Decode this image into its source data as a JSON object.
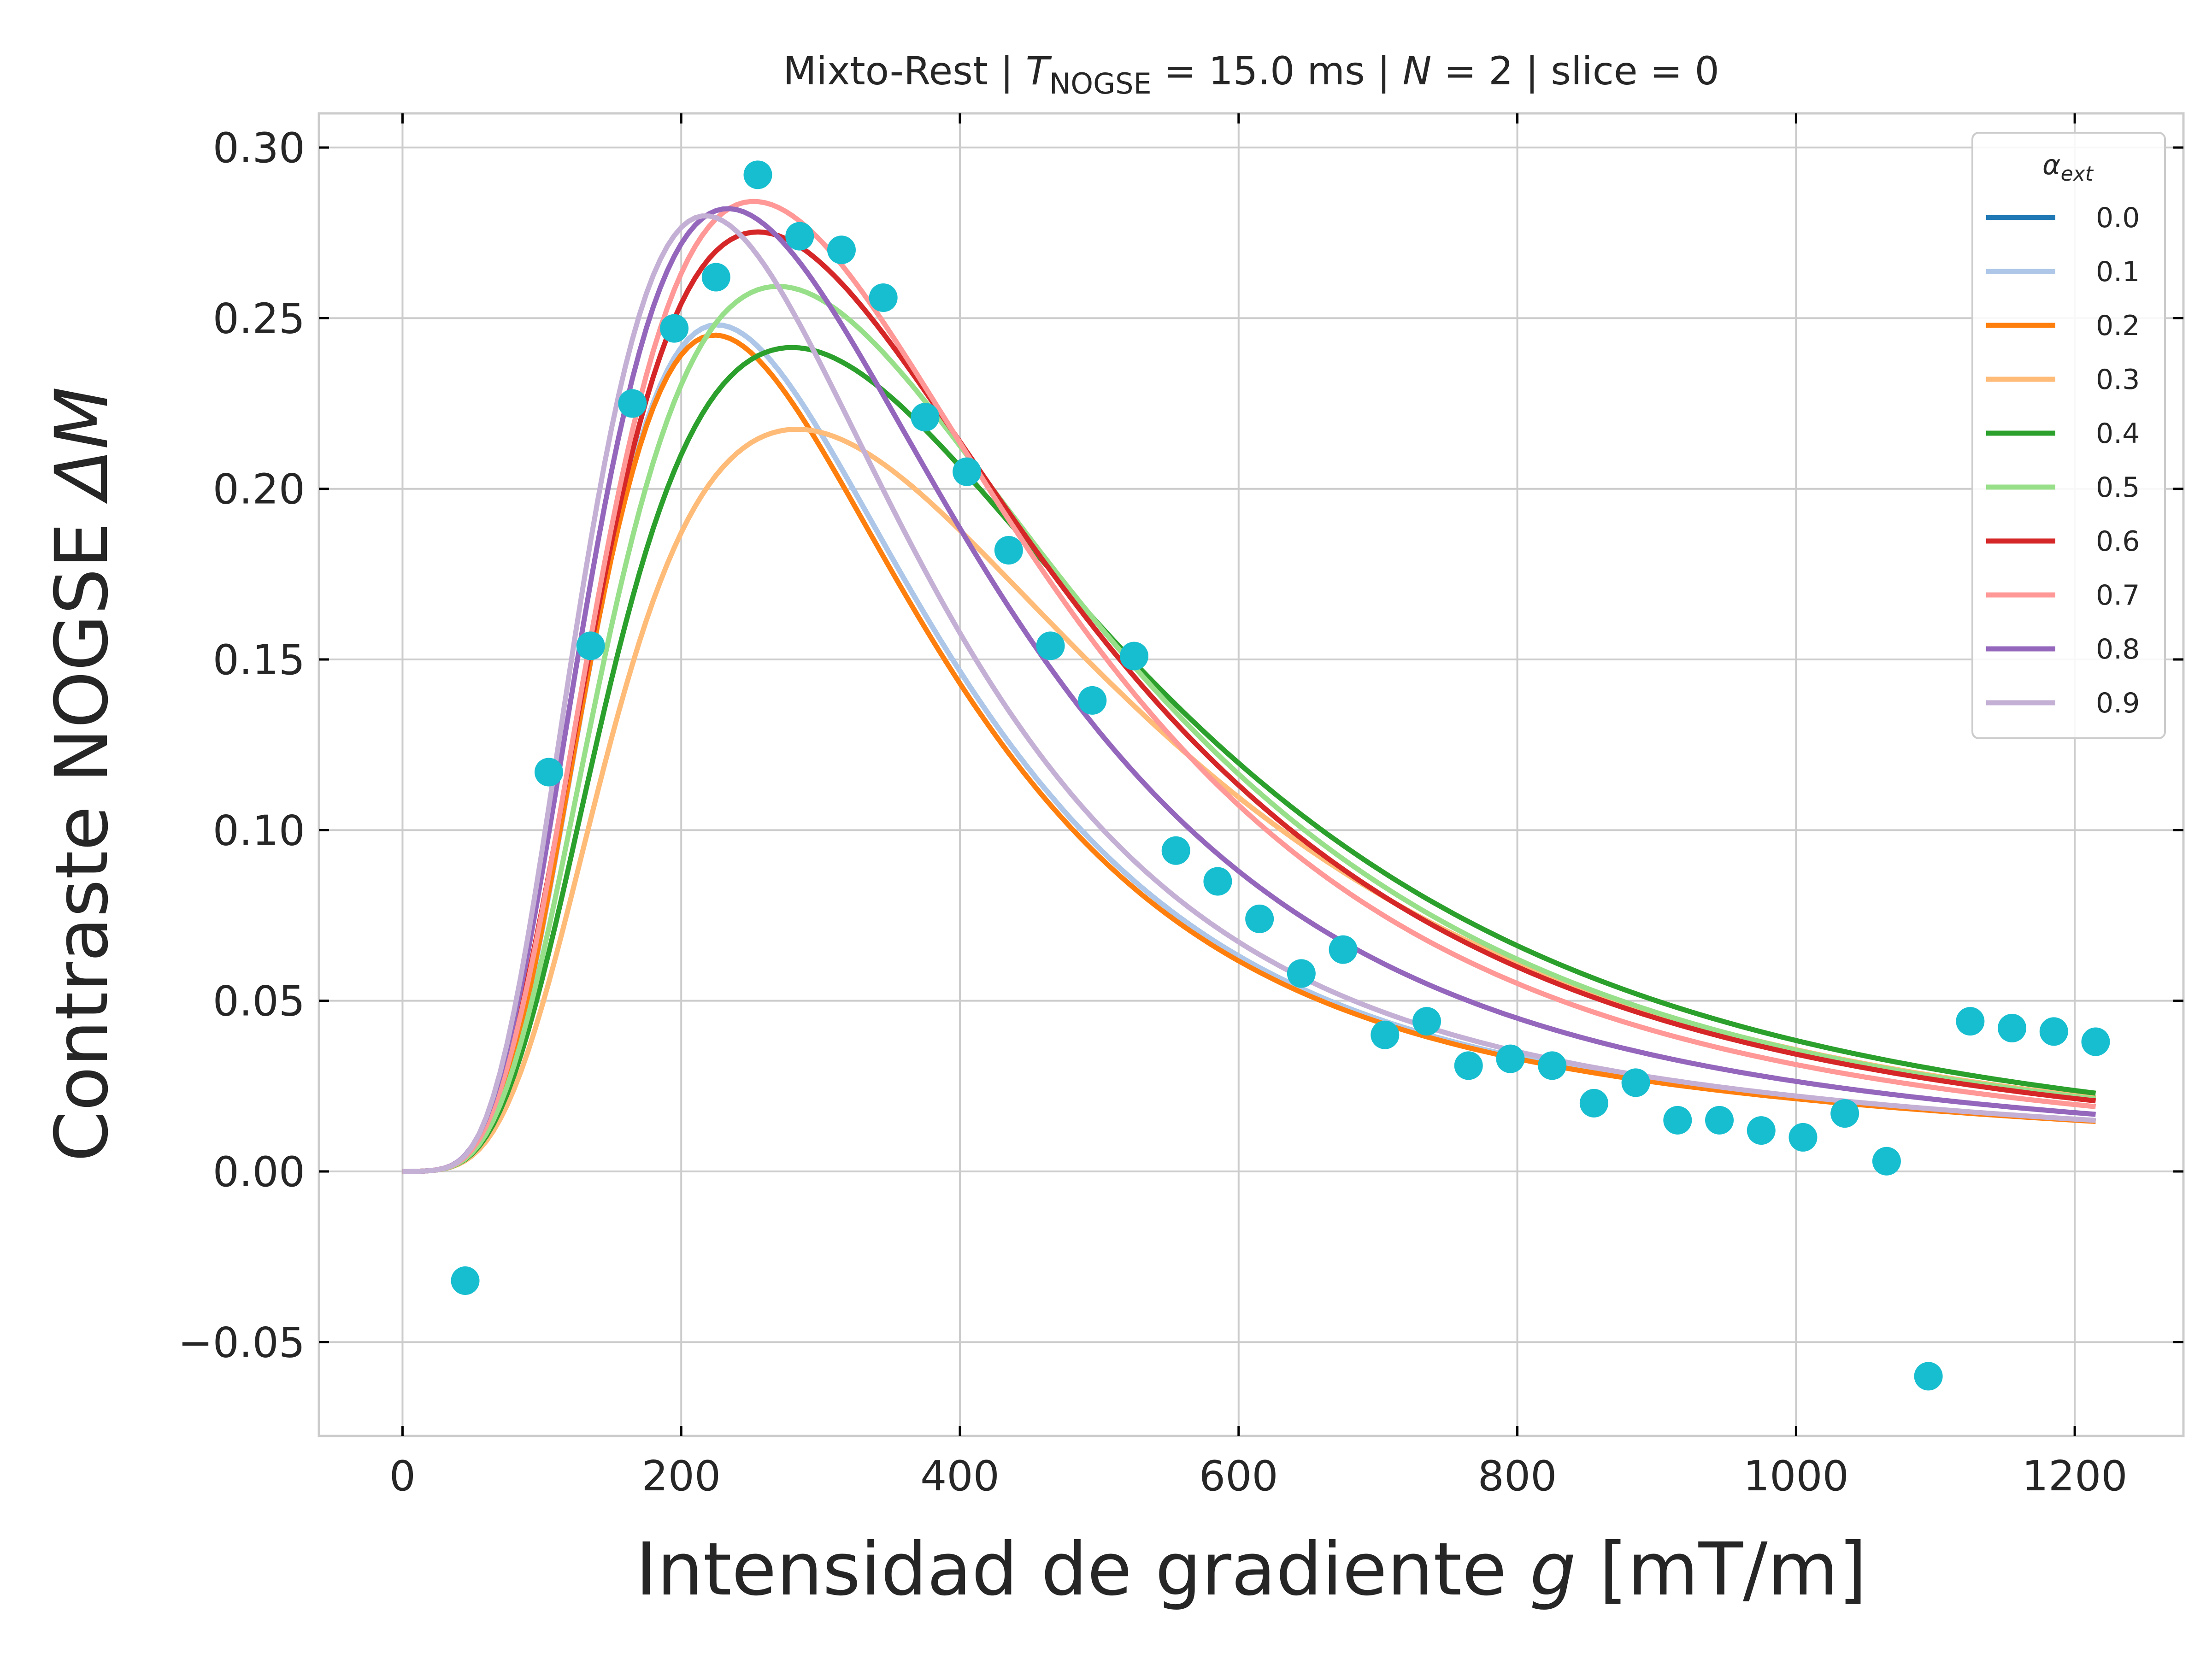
{
  "chart_data": {
    "type": "line",
    "title": {
      "prefix": "Mixto-Rest | ",
      "T": "T",
      "T_sub": "NOGSE",
      "t_value": " = 15.0 ms | ",
      "N": "N",
      "n_value": " = 2 | slice = 0"
    },
    "xlabel": {
      "text": "Intensidad de gradiente ",
      "var": "g",
      "unit": " [mT/m]"
    },
    "ylabel": {
      "text": "Contraste NOGSE ",
      "var": "ΔM"
    },
    "xlim": [
      -60,
      1278
    ],
    "ylim": [
      -0.0775,
      0.31
    ],
    "x_ticks": [
      0,
      200,
      400,
      600,
      800,
      1000,
      1200
    ],
    "y_ticks": [
      -0.05,
      0.0,
      0.05,
      0.1,
      0.15,
      0.2,
      0.25,
      0.3
    ],
    "y_tick_labels": [
      "−0.05",
      "0.00",
      "0.05",
      "0.10",
      "0.15",
      "0.20",
      "0.25",
      "0.30"
    ],
    "grid": true,
    "legend": {
      "title": "α",
      "title_sub": "ext",
      "placement": "top-right"
    },
    "curve_x_max": 1215,
    "series": [
      {
        "name": "0.0",
        "color": "#1f77b4",
        "peak_g": 228,
        "peak_val": 0.248,
        "sigma": 0.5,
        "tail": 0.014
      },
      {
        "name": "0.1",
        "color": "#aec7e8",
        "peak_g": 228,
        "peak_val": 0.248,
        "sigma": 0.5,
        "tail": 0.014
      },
      {
        "name": "0.2",
        "color": "#ff7f0e",
        "peak_g": 226,
        "peak_val": 0.245,
        "sigma": 0.5,
        "tail": 0.014
      },
      {
        "name": "0.3",
        "color": "#ffbb78",
        "peak_g": 295,
        "peak_val": 0.217,
        "sigma": 0.57,
        "tail": 0.014
      },
      {
        "name": "0.4",
        "color": "#2ca02c",
        "peak_g": 290,
        "peak_val": 0.241,
        "sigma": 0.58,
        "tail": 0.014
      },
      {
        "name": "0.5",
        "color": "#98df8a",
        "peak_g": 278,
        "peak_val": 0.259,
        "sigma": 0.57,
        "tail": 0.014
      },
      {
        "name": "0.6",
        "color": "#d62728",
        "peak_g": 262,
        "peak_val": 0.275,
        "sigma": 0.58,
        "tail": 0.014
      },
      {
        "name": "0.7",
        "color": "#ff9896",
        "peak_g": 258,
        "peak_val": 0.284,
        "sigma": 0.56,
        "tail": 0.014
      },
      {
        "name": "0.8",
        "color": "#9467bd",
        "peak_g": 237,
        "peak_val": 0.282,
        "sigma": 0.55,
        "tail": 0.014
      },
      {
        "name": "0.9",
        "color": "#c5b0d5",
        "peak_g": 218,
        "peak_val": 0.28,
        "sigma": 0.52,
        "tail": 0.014
      }
    ],
    "scatter": {
      "color": "#17becf",
      "points": [
        [
          45,
          -0.032
        ],
        [
          105,
          0.117
        ],
        [
          135,
          0.154
        ],
        [
          165,
          0.225
        ],
        [
          195,
          0.247
        ],
        [
          225,
          0.262
        ],
        [
          255,
          0.292
        ],
        [
          285,
          0.274
        ],
        [
          315,
          0.27
        ],
        [
          345,
          0.256
        ],
        [
          375,
          0.221
        ],
        [
          405,
          0.205
        ],
        [
          435,
          0.182
        ],
        [
          465,
          0.154
        ],
        [
          495,
          0.138
        ],
        [
          525,
          0.151
        ],
        [
          555,
          0.094
        ],
        [
          585,
          0.085
        ],
        [
          615,
          0.074
        ],
        [
          645,
          0.058
        ],
        [
          675,
          0.065
        ],
        [
          705,
          0.04
        ],
        [
          735,
          0.044
        ],
        [
          765,
          0.031
        ],
        [
          795,
          0.033
        ],
        [
          825,
          0.031
        ],
        [
          855,
          0.02
        ],
        [
          885,
          0.026
        ],
        [
          915,
          0.015
        ],
        [
          945,
          0.015
        ],
        [
          975,
          0.012
        ],
        [
          1005,
          0.01
        ],
        [
          1035,
          0.017
        ],
        [
          1065,
          0.003
        ],
        [
          1095,
          -0.06
        ],
        [
          1125,
          0.044
        ],
        [
          1155,
          0.042
        ],
        [
          1185,
          0.041
        ],
        [
          1215,
          0.038
        ]
      ]
    }
  }
}
